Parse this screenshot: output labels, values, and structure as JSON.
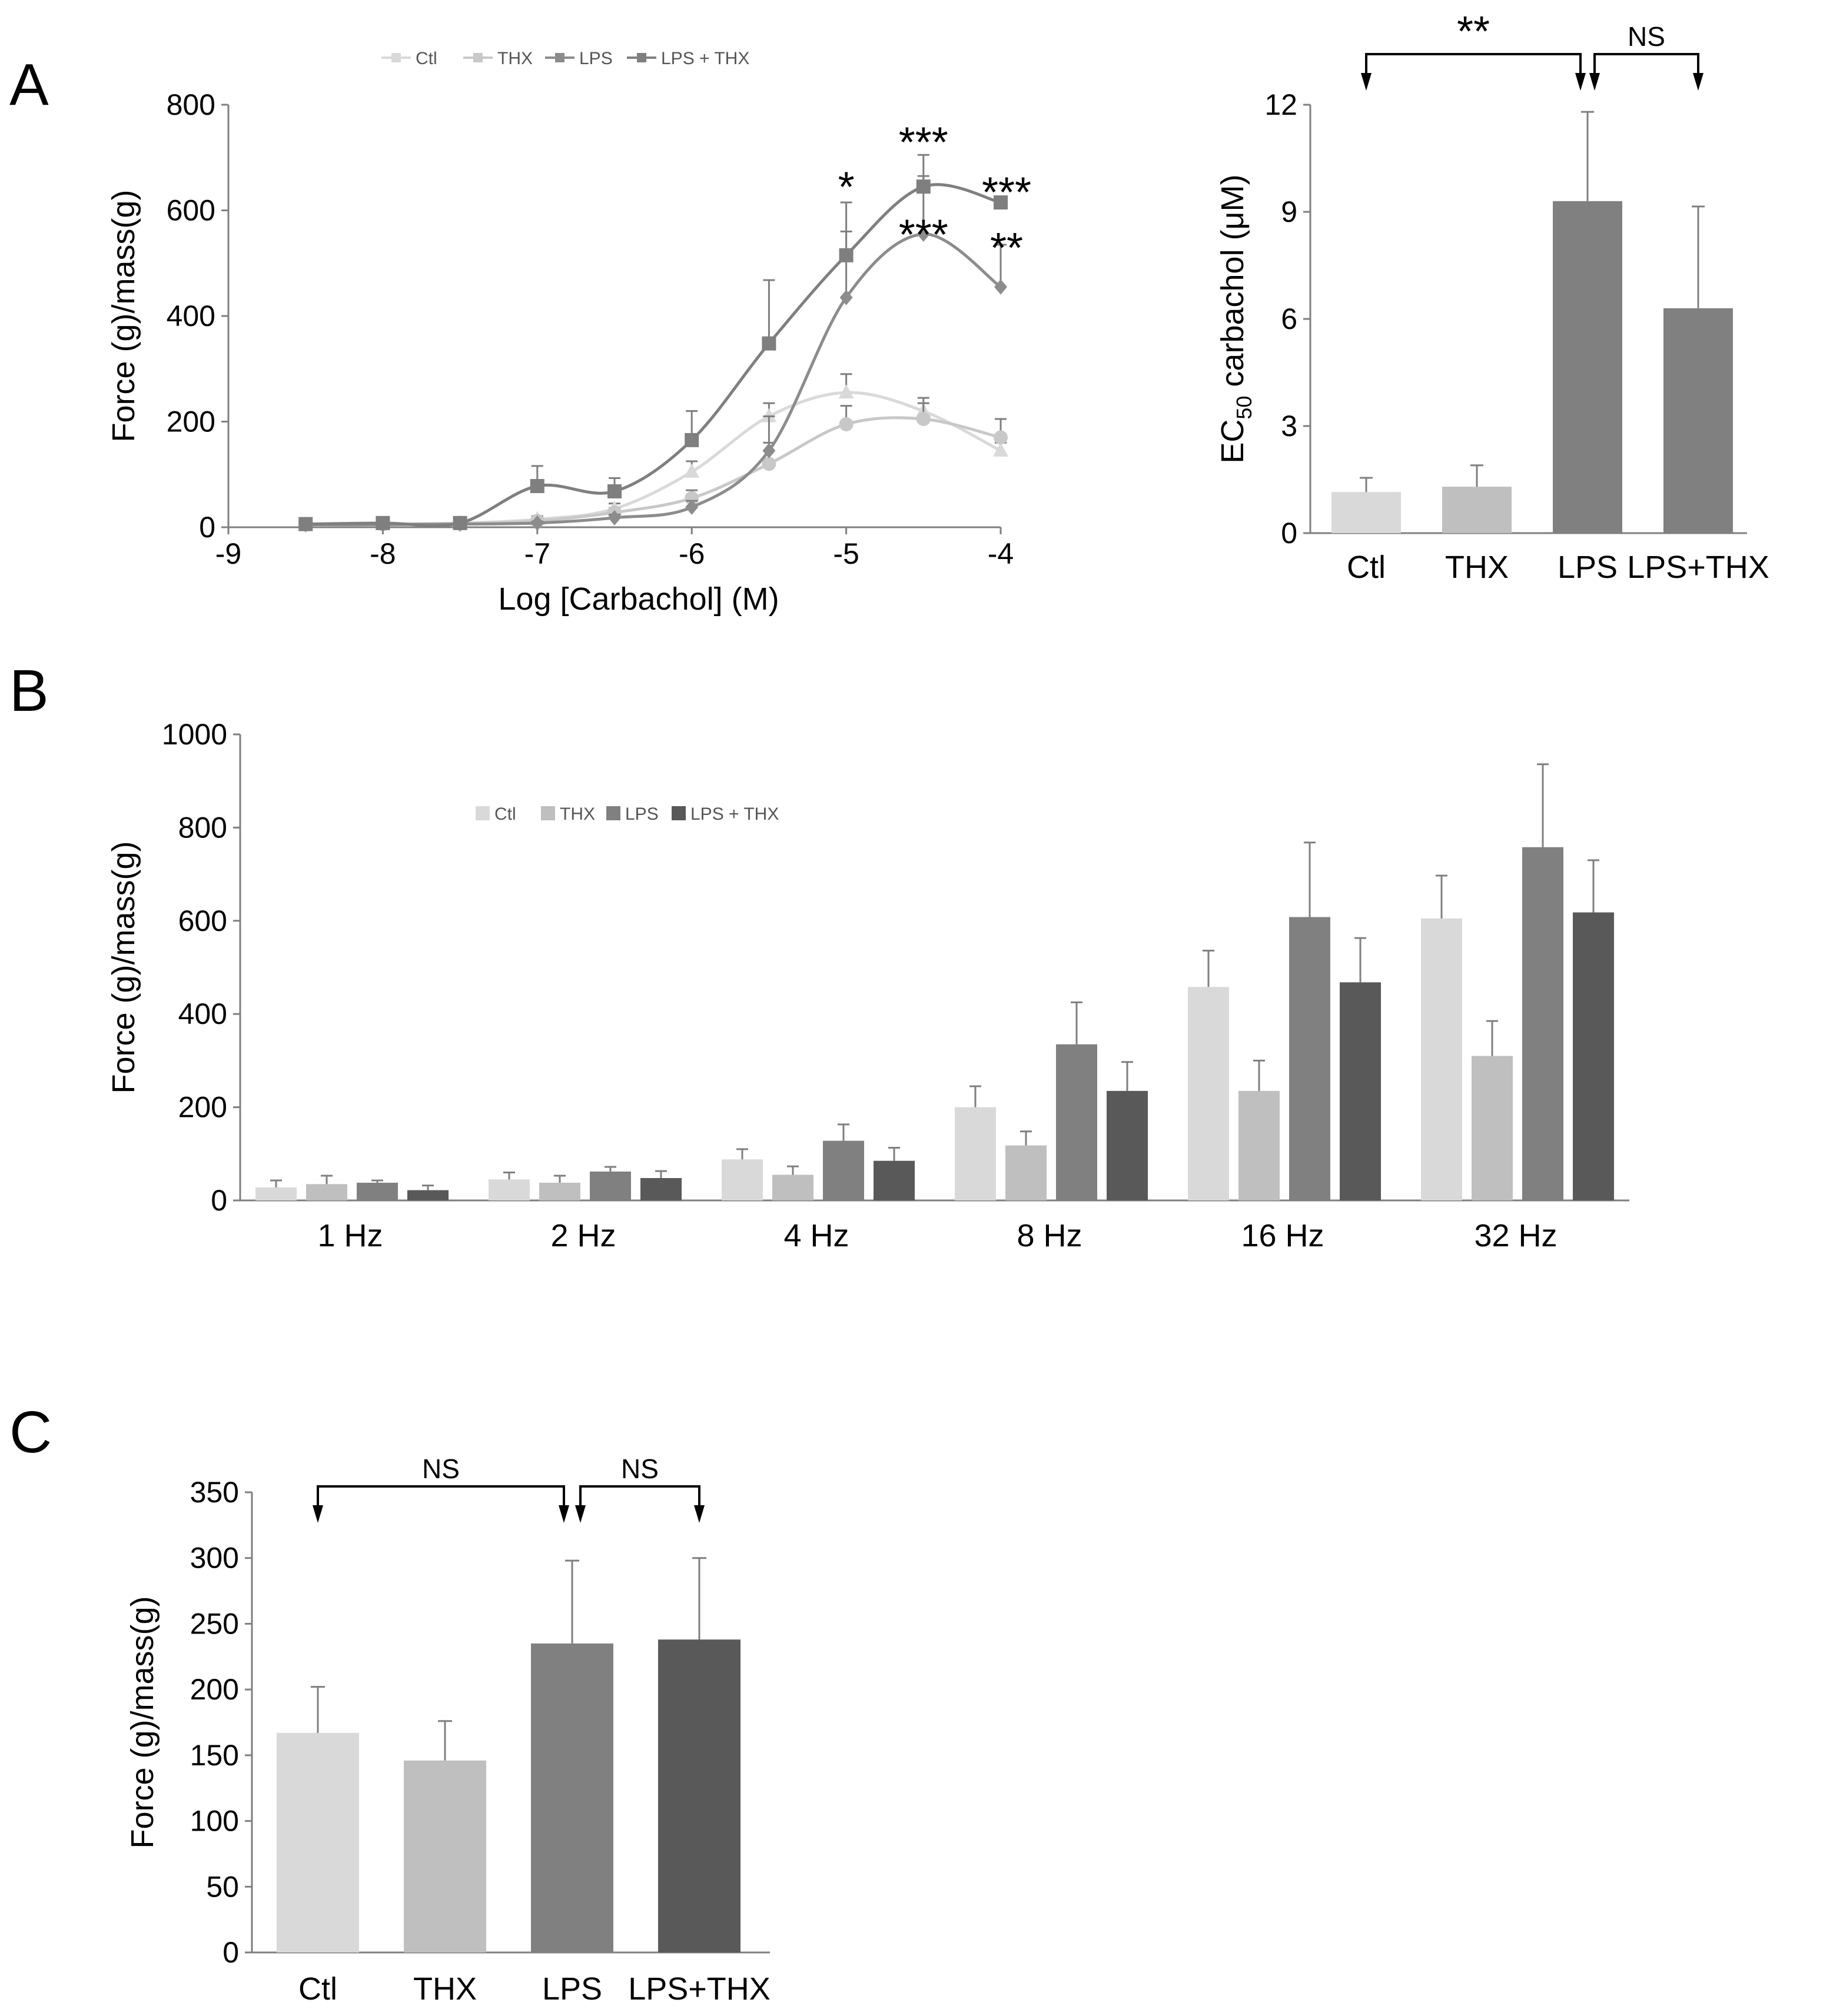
{
  "panels": {
    "A": "A",
    "B": "B",
    "C": "C"
  },
  "colors": {
    "ctl": "#d9d9d9",
    "thx": "#bfbfbf",
    "lps": "#808080",
    "lps_thx": "#595959",
    "lineA_lps_thx": "#7f7f7f",
    "lineA_lps": "#8c8c8c",
    "axis": "#7f7f7f"
  },
  "chart_data": [
    {
      "id": "A_curve",
      "type": "line",
      "title": "",
      "xlabel": "Log [Carbachol] (M)",
      "ylabel": "Force (g)/mass(g)",
      "xlim": [
        -9,
        -4
      ],
      "ylim": [
        0,
        800
      ],
      "x_ticks": [
        -9,
        -8,
        -7,
        -6,
        -5,
        -4
      ],
      "y_ticks": [
        0,
        200,
        400,
        600,
        800
      ],
      "x": [
        -8.5,
        -8,
        -7.5,
        -7,
        -6.5,
        -6,
        -5.5,
        -5,
        -4.5,
        -4
      ],
      "legend": [
        "Ctl",
        "THX",
        "LPS",
        "LPS + THX"
      ],
      "legend_position": "top",
      "series": [
        {
          "name": "Ctl",
          "marker": "triangle",
          "color": "#d9d9d9",
          "values": [
            5,
            6,
            8,
            15,
            35,
            105,
            210,
            255,
            220,
            145
          ],
          "errors": [
            2,
            2,
            3,
            6,
            10,
            20,
            25,
            35,
            25,
            15
          ]
        },
        {
          "name": "THX",
          "marker": "circle",
          "color": "#c8c8c8",
          "values": [
            5,
            6,
            7,
            12,
            28,
            55,
            120,
            195,
            205,
            170
          ],
          "errors": [
            2,
            2,
            3,
            5,
            8,
            15,
            40,
            35,
            30,
            35
          ]
        },
        {
          "name": "LPS",
          "marker": "diamond",
          "color": "#8c8c8c",
          "values": [
            5,
            5,
            6,
            8,
            18,
            38,
            145,
            435,
            555,
            455
          ],
          "errors": [
            2,
            2,
            2,
            3,
            6,
            12,
            65,
            125,
            110,
            80
          ]
        },
        {
          "name": "LPS + THX",
          "marker": "square",
          "color": "#7f7f7f",
          "values": [
            6,
            8,
            8,
            78,
            68,
            165,
            348,
            515,
            645,
            615
          ],
          "errors": [
            2,
            2,
            3,
            38,
            25,
            55,
            120,
            100,
            60,
            0
          ]
        }
      ],
      "annotations": [
        {
          "text": "*",
          "x": -5,
          "y": 650
        },
        {
          "text": "***",
          "x": -4.5,
          "y": 735
        },
        {
          "text": "***",
          "x": -4.5,
          "y": 560
        },
        {
          "text": "***",
          "x": -4,
          "y": 640
        },
        {
          "text": "**",
          "x": -4,
          "y": 535
        }
      ]
    },
    {
      "id": "A_ec50",
      "type": "bar",
      "title": "",
      "xlabel": "",
      "ylabel_prefix": "EC",
      "ylabel_sub": "50",
      "ylabel_suffix": " carbachol (μM)",
      "ylim": [
        0,
        12
      ],
      "y_ticks": [
        0,
        3,
        6,
        9,
        12
      ],
      "categories": [
        "Ctl",
        "THX",
        "LPS",
        "LPS+THX"
      ],
      "values": [
        1.15,
        1.3,
        9.3,
        6.3
      ],
      "errors": [
        0.4,
        0.6,
        2.5,
        2.85
      ],
      "colors": [
        "#d9d9d9",
        "#bfbfbf",
        "#808080",
        "#808080"
      ],
      "significance": [
        {
          "from": 0,
          "to": 2,
          "label": "**"
        },
        {
          "from": 2,
          "to": 3,
          "label": "NS"
        }
      ]
    },
    {
      "id": "B_frequency",
      "type": "bar",
      "title": "",
      "xlabel": "",
      "ylabel": "Force (g)/mass(g)",
      "ylim": [
        0,
        1000
      ],
      "y_ticks": [
        0,
        200,
        400,
        600,
        800,
        1000
      ],
      "categories": [
        "1 Hz",
        "2 Hz",
        "4 Hz",
        "8 Hz",
        "16 Hz",
        "32 Hz"
      ],
      "legend": [
        "Ctl",
        "THX",
        "LPS",
        "LPS + THX"
      ],
      "legend_position": "top-center",
      "series": [
        {
          "name": "Ctl",
          "color": "#d9d9d9",
          "values": [
            28,
            45,
            88,
            200,
            458,
            605
          ],
          "errors": [
            15,
            15,
            22,
            45,
            78,
            92
          ]
        },
        {
          "name": "THX",
          "color": "#bfbfbf",
          "values": [
            35,
            38,
            55,
            118,
            235,
            310
          ],
          "errors": [
            18,
            15,
            18,
            30,
            65,
            75
          ]
        },
        {
          "name": "LPS",
          "color": "#808080",
          "values": [
            38,
            62,
            128,
            335,
            608,
            758
          ],
          "errors": [
            5,
            10,
            35,
            90,
            160,
            178
          ]
        },
        {
          "name": "LPS + THX",
          "color": "#595959",
          "values": [
            22,
            48,
            85,
            235,
            468,
            618
          ],
          "errors": [
            10,
            15,
            28,
            62,
            95,
            112
          ]
        }
      ]
    },
    {
      "id": "C_force",
      "type": "bar",
      "title": "",
      "xlabel": "",
      "ylabel": "Force (g)/mass(g)",
      "ylim": [
        0,
        350
      ],
      "y_ticks": [
        0,
        50,
        100,
        150,
        200,
        250,
        300,
        350
      ],
      "categories": [
        "Ctl",
        "THX",
        "LPS",
        "LPS+THX"
      ],
      "values": [
        167,
        146,
        235,
        238
      ],
      "errors": [
        35,
        30,
        63,
        62
      ],
      "colors": [
        "#d9d9d9",
        "#bfbfbf",
        "#808080",
        "#595959"
      ],
      "significance": [
        {
          "from": 0,
          "to": 2,
          "label": "NS"
        },
        {
          "from": 2,
          "to": 3,
          "label": "NS"
        }
      ]
    }
  ]
}
